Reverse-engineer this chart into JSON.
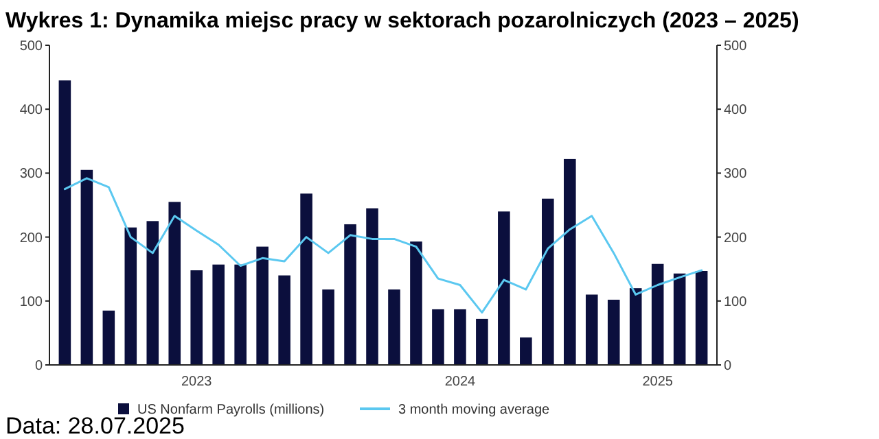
{
  "chart_data": {
    "type": "bar",
    "title": "Wykres 1: Dynamika miejsc pracy w sektorach pozarolniczych (2023 – 2025)",
    "categories": [
      null,
      null,
      null,
      null,
      null,
      null,
      "2023",
      null,
      null,
      null,
      null,
      null,
      null,
      null,
      null,
      null,
      null,
      null,
      "2024",
      null,
      null,
      null,
      null,
      null,
      null,
      null,
      null,
      "2025",
      null,
      null
    ],
    "series": [
      {
        "name": "US Nonfarm Payrolls (millions)",
        "color": "#0b0f3d",
        "values": [
          445,
          305,
          85,
          215,
          225,
          255,
          148,
          157,
          157,
          185,
          140,
          268,
          118,
          220,
          245,
          118,
          193,
          87,
          87,
          72,
          240,
          43,
          260,
          322,
          110,
          102,
          120,
          158,
          143,
          147
        ]
      },
      {
        "name": "3 month moving average",
        "type": "line",
        "color": "#5bc8f0",
        "values": [
          275,
          292,
          278,
          200,
          175,
          233,
          210,
          188,
          155,
          167,
          162,
          200,
          175,
          203,
          197,
          197,
          185,
          135,
          125,
          82,
          133,
          118,
          182,
          212,
          233,
          175,
          110,
          125,
          137,
          148
        ]
      }
    ],
    "ylim": [
      0,
      500
    ],
    "yticks": [
      0,
      100,
      200,
      300,
      400,
      500
    ],
    "y2lim": [
      0,
      500
    ],
    "y2ticks": [
      0,
      100,
      200,
      300,
      400,
      500
    ],
    "grid": false,
    "legend": "bottom",
    "line_style": "solid",
    "marker": "none",
    "annotations": [
      "Data: 28.07.2025"
    ]
  }
}
